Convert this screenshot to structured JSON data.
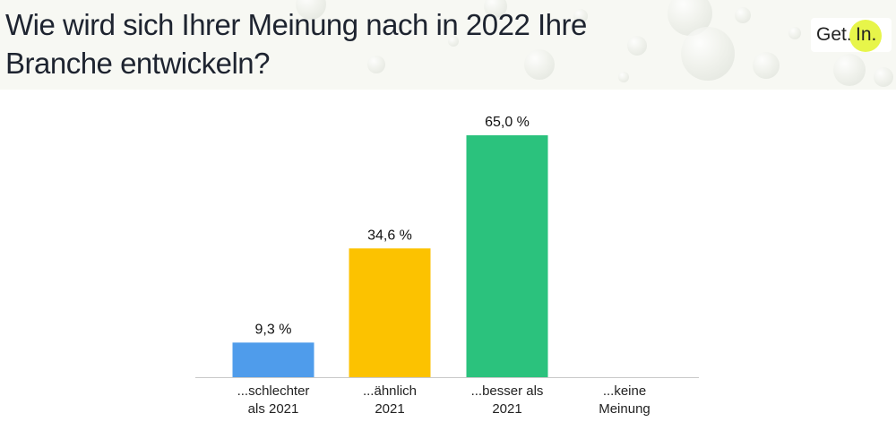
{
  "header": {
    "title_line1": "Wie wird sich Ihrer Meinung nach in 2022 Ihre",
    "title_line2": "Branche entwickeln?",
    "logo_get": "Get.",
    "logo_in": "In."
  },
  "chart_data": {
    "type": "bar",
    "title": "Wie wird sich Ihrer Meinung nach in 2022 Ihre Branche entwickeln?",
    "categories": [
      [
        "...schlechter",
        "als 2021"
      ],
      [
        "...ähnlich",
        "2021"
      ],
      [
        "...besser als",
        "2021"
      ],
      [
        "...keine",
        "Meinung"
      ]
    ],
    "values": [
      9.3,
      34.6,
      65.0,
      0
    ],
    "labels": [
      "9,3 %",
      "34,6 %",
      "65,0 %",
      ""
    ],
    "colors": [
      "#4f9ceb",
      "#fcc200",
      "#2bc27d",
      "#cccccc"
    ],
    "xlabel": "",
    "ylabel": "",
    "ylim": [
      0,
      65
    ],
    "grid": false,
    "legend": "none"
  }
}
